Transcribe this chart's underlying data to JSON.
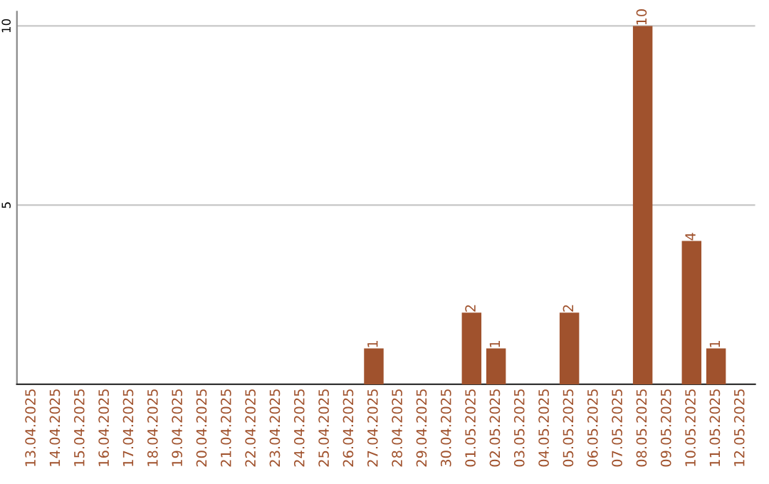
{
  "chart_data": {
    "type": "bar",
    "categories": [
      "13.04.2025",
      "14.04.2025",
      "15.04.2025",
      "16.04.2025",
      "17.04.2025",
      "18.04.2025",
      "19.04.2025",
      "20.04.2025",
      "21.04.2025",
      "22.04.2025",
      "23.04.2025",
      "24.04.2025",
      "25.04.2025",
      "26.04.2025",
      "27.04.2025",
      "28.04.2025",
      "29.04.2025",
      "30.04.2025",
      "01.05.2025",
      "02.05.2025",
      "03.05.2025",
      "04.05.2025",
      "05.05.2025",
      "06.05.2025",
      "07.05.2025",
      "08.05.2025",
      "09.05.2025",
      "10.05.2025",
      "11.05.2025",
      "12.05.2025"
    ],
    "values": [
      0,
      0,
      0,
      0,
      0,
      0,
      0,
      0,
      0,
      0,
      0,
      0,
      0,
      0,
      1,
      0,
      0,
      0,
      2,
      1,
      0,
      0,
      2,
      0,
      0,
      10,
      0,
      4,
      1,
      0
    ],
    "value_labels": [
      null,
      null,
      null,
      null,
      null,
      null,
      null,
      null,
      null,
      null,
      null,
      null,
      null,
      null,
      "1",
      null,
      null,
      null,
      "2",
      "1",
      null,
      null,
      "2",
      null,
      null,
      "10",
      null,
      "4",
      "1",
      null
    ],
    "color": "#a0522d",
    "ylim": [
      0,
      10.4
    ],
    "yticks": [
      5,
      10
    ],
    "grid": "y"
  }
}
